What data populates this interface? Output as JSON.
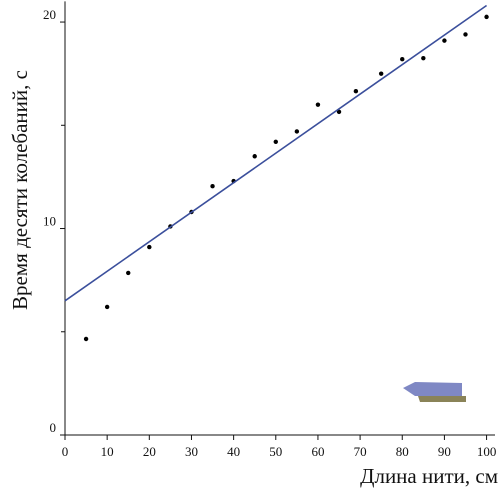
{
  "chart_data": {
    "type": "scatter",
    "x_label": "Длина нити, см",
    "y_label": "Время десяти колебаний, с",
    "xlim": [
      0,
      102
    ],
    "ylim": [
      0,
      21
    ],
    "xticks": [
      0,
      10,
      20,
      30,
      40,
      50,
      60,
      70,
      80,
      90,
      100
    ],
    "yticks": [
      0,
      10,
      20
    ],
    "yminor": [
      5,
      15
    ],
    "series": [
      {
        "color": "#000000",
        "x": [
          5,
          10,
          15,
          20,
          25,
          30,
          35,
          40,
          45,
          50,
          55,
          60,
          65,
          69,
          75,
          80,
          85,
          90,
          95,
          100
        ],
        "values": [
          4.65,
          6.2,
          7.85,
          9.1,
          10.1,
          10.8,
          12.05,
          12.3,
          13.5,
          14.2,
          14.7,
          16.0,
          15.65,
          16.65,
          17.5,
          18.2,
          18.25,
          19.1,
          19.4,
          20.25
        ]
      },
      {
        "color": "#3b4f9c",
        "kind": "line",
        "x": [
          0,
          100
        ],
        "values": [
          6.5,
          20.8
        ]
      }
    ]
  }
}
